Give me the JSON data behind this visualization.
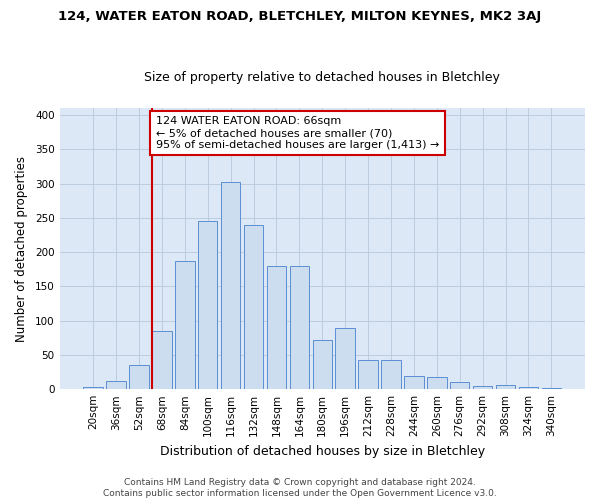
{
  "title": "124, WATER EATON ROAD, BLETCHLEY, MILTON KEYNES, MK2 3AJ",
  "subtitle": "Size of property relative to detached houses in Bletchley",
  "xlabel": "Distribution of detached houses by size in Bletchley",
  "ylabel": "Number of detached properties",
  "footer_line1": "Contains HM Land Registry data © Crown copyright and database right 2024.",
  "footer_line2": "Contains public sector information licensed under the Open Government Licence v3.0.",
  "categories": [
    "20sqm",
    "36sqm",
    "52sqm",
    "68sqm",
    "84sqm",
    "100sqm",
    "116sqm",
    "132sqm",
    "148sqm",
    "164sqm",
    "180sqm",
    "196sqm",
    "212sqm",
    "228sqm",
    "244sqm",
    "260sqm",
    "276sqm",
    "292sqm",
    "308sqm",
    "324sqm",
    "340sqm"
  ],
  "values": [
    3,
    12,
    35,
    85,
    187,
    245,
    302,
    240,
    180,
    180,
    72,
    90,
    43,
    42,
    19,
    18,
    10,
    5,
    6,
    3,
    2
  ],
  "bar_color": "#ccddf0",
  "bar_edge_color": "#5b8fd4",
  "grid_color": "#b8c8dc",
  "background_color": "#dce8f5",
  "annotation_line1": "124 WATER EATON ROAD: 66sqm",
  "annotation_line2": "← 5% of detached houses are smaller (70)",
  "annotation_line3": "95% of semi-detached houses are larger (1,413) →",
  "annotation_box_color": "white",
  "annotation_box_edge_color": "#cc0000",
  "red_line_color": "#cc0000",
  "red_line_x": 3.0,
  "ylim": [
    0,
    410
  ],
  "yticks": [
    0,
    50,
    100,
    150,
    200,
    250,
    300,
    350,
    400
  ],
  "title_fontsize": 9.5,
  "subtitle_fontsize": 9,
  "tick_fontsize": 7.5,
  "ylabel_fontsize": 8.5,
  "xlabel_fontsize": 9,
  "footer_fontsize": 6.5,
  "ann_fontsize": 8
}
